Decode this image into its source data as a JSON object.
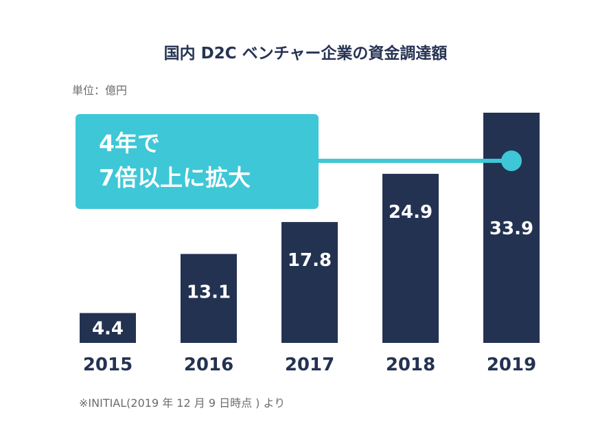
{
  "title": "国内 D2C ベンチャー企業の資金調達額",
  "unit_label": "単位：億円",
  "callout": {
    "line1": "4年で",
    "line2": "7倍以上に拡大"
  },
  "source_note": "※INITIAL(2019 年 12 月 9 日時点 ) より",
  "colors": {
    "bar": "#243252",
    "accent": "#3ec7d6",
    "text": "#243252"
  },
  "chart_data": {
    "type": "bar",
    "categories": [
      "2015",
      "2016",
      "2017",
      "2018",
      "2019"
    ],
    "values": [
      4.4,
      13.1,
      17.8,
      24.9,
      33.9
    ],
    "value_labels": [
      "4.4",
      "13.1",
      "17.8",
      "24.9",
      "33.9"
    ],
    "title": "国内 D2C ベンチャー企業の資金調達額",
    "ylabel": "単位：億円",
    "xlabel": "",
    "ylim": [
      0,
      33.9
    ],
    "grid": false,
    "legend": "none",
    "annotation": "4年で 7倍以上に拡大"
  }
}
